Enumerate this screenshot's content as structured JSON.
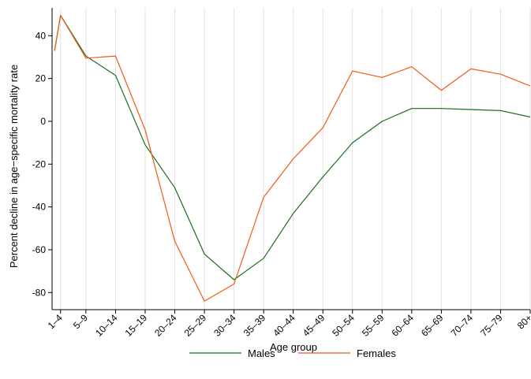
{
  "chart_data": {
    "type": "line",
    "xlabel": "Age group",
    "ylabel": "Percent decline in age−specific mortality rate",
    "x": [
      0.3,
      1,
      4,
      7.5,
      11,
      14.5,
      18,
      21.5,
      25,
      28.5,
      32,
      35.5,
      39,
      42.5,
      46,
      49.5,
      53,
      56.5
    ],
    "x_tick_positions": [
      1,
      4,
      7.5,
      11,
      14.5,
      18,
      21.5,
      25,
      28.5,
      32,
      35.5,
      39,
      42.5,
      46,
      49.5,
      53,
      56.5
    ],
    "x_tick_labels": [
      "1–4",
      "5–9",
      "10–14",
      "15–19",
      "20–24",
      "25–29",
      "30–34",
      "35–39",
      "40–44",
      "45–49",
      "50–54",
      "55–59",
      "60–64",
      "65–69",
      "70–74",
      "75–79",
      "80+"
    ],
    "xlim": [
      0,
      56.5
    ],
    "y_ticks": [
      40,
      20,
      0,
      -20,
      -40,
      -60,
      -80
    ],
    "y_tick_labels": [
      "40",
      "20",
      "0",
      "-20",
      "-40",
      "-60",
      "-80"
    ],
    "ylim": [
      -88,
      53
    ],
    "grid": "vertical",
    "legend_position": "bottom",
    "series": [
      {
        "name": "Males",
        "color": "#1a6e1a",
        "values": [
          33,
          49.5,
          30.5,
          21.5,
          -11,
          -31,
          -62,
          -74,
          -64,
          -43,
          -26,
          -10,
          0,
          6,
          6,
          5.5,
          5,
          2
        ]
      },
      {
        "name": "Females",
        "color": "#f05a14",
        "values": [
          33,
          49.5,
          29.5,
          30.5,
          -4,
          -56,
          -84,
          -76,
          -35.5,
          -17.5,
          -3,
          23.5,
          20.5,
          25.5,
          14.5,
          24.5,
          22,
          16.5
        ]
      }
    ]
  }
}
